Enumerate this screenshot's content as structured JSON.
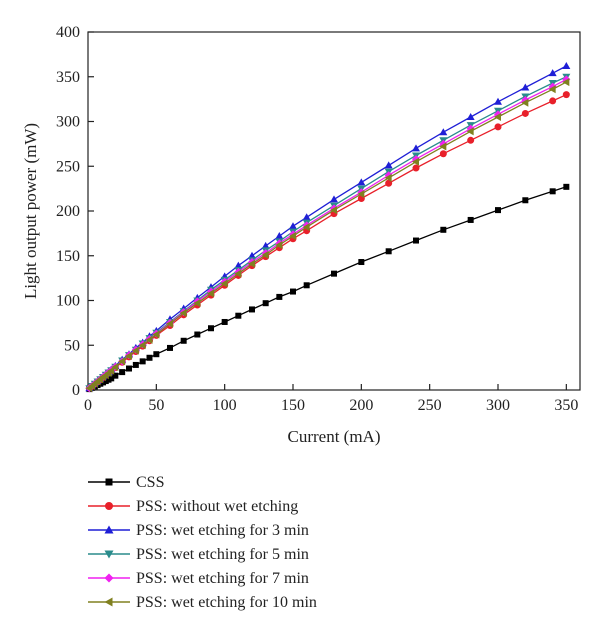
{
  "chart_data": {
    "type": "line",
    "xlabel": "Current (mA)",
    "ylabel": "Light output power (mW)",
    "xlim": [
      0,
      360
    ],
    "ylim": [
      0,
      400
    ],
    "xticks": [
      0,
      50,
      100,
      150,
      200,
      250,
      300,
      350
    ],
    "yticks": [
      0,
      50,
      100,
      150,
      200,
      250,
      300,
      350,
      400
    ],
    "grid": false,
    "legend_position": "bottom",
    "series": [
      {
        "name": "CSS",
        "color": "#000000",
        "marker": "square",
        "x": [
          1,
          3,
          5,
          7,
          9,
          11,
          13,
          15,
          17,
          20,
          25,
          30,
          35,
          40,
          45,
          50,
          60,
          70,
          80,
          90,
          100,
          110,
          120,
          130,
          140,
          150,
          160,
          180,
          200,
          220,
          240,
          260,
          280,
          300,
          320,
          340,
          350
        ],
        "y": [
          1,
          2.5,
          4,
          5.5,
          7,
          8.5,
          10,
          11.5,
          13,
          16,
          20,
          24,
          28,
          32,
          36,
          40,
          47,
          55,
          62,
          69,
          76,
          83,
          90,
          97,
          104,
          110,
          117,
          130,
          143,
          155,
          167,
          179,
          190,
          201,
          212,
          222,
          227
        ]
      },
      {
        "name": "PSS: without wet etching",
        "color": "#e8202a",
        "marker": "circle",
        "x": [
          1,
          3,
          5,
          7,
          9,
          11,
          13,
          15,
          17,
          20,
          25,
          30,
          35,
          40,
          45,
          50,
          60,
          70,
          80,
          90,
          100,
          110,
          120,
          130,
          140,
          150,
          160,
          180,
          200,
          220,
          240,
          260,
          280,
          300,
          320,
          340,
          350
        ],
        "y": [
          2,
          4,
          6.5,
          9,
          11.5,
          14,
          16.5,
          19,
          21.5,
          25,
          31,
          37,
          43,
          49,
          55,
          61,
          72,
          84,
          95,
          106,
          117,
          128,
          139,
          149,
          159,
          169,
          178,
          197,
          214,
          231,
          248,
          264,
          279,
          294,
          309,
          323,
          330
        ]
      },
      {
        "name": "PSS: wet etching for 3 min",
        "color": "#1f1fd6",
        "marker": "triangle-up",
        "x": [
          1,
          3,
          5,
          7,
          9,
          11,
          13,
          15,
          17,
          20,
          25,
          30,
          35,
          40,
          45,
          50,
          60,
          70,
          80,
          90,
          100,
          110,
          120,
          130,
          140,
          150,
          160,
          180,
          200,
          220,
          240,
          260,
          280,
          300,
          320,
          340,
          350
        ],
        "y": [
          2,
          5,
          7.5,
          10,
          12.5,
          15,
          18,
          20.5,
          23,
          27,
          34,
          40,
          47,
          53,
          60,
          66,
          79,
          91,
          103,
          115,
          127,
          139,
          150,
          161,
          172,
          183,
          193,
          213,
          232,
          251,
          270,
          288,
          305,
          322,
          338,
          354,
          362
        ]
      },
      {
        "name": "PSS: wet etching for 5 min",
        "color": "#2a8c8c",
        "marker": "triangle-down",
        "x": [
          1,
          3,
          5,
          7,
          9,
          11,
          13,
          15,
          17,
          20,
          25,
          30,
          35,
          40,
          45,
          50,
          60,
          70,
          80,
          90,
          100,
          110,
          120,
          130,
          140,
          150,
          160,
          180,
          200,
          220,
          240,
          260,
          280,
          300,
          320,
          340,
          350
        ],
        "y": [
          2,
          4.5,
          7,
          9.5,
          12,
          14.5,
          17,
          19.5,
          22,
          26,
          33,
          39,
          45,
          52,
          58,
          64,
          76,
          88,
          100,
          112,
          123,
          134,
          145,
          156,
          166,
          177,
          187,
          206,
          225,
          244,
          262,
          279,
          296,
          312,
          328,
          343,
          350
        ]
      },
      {
        "name": "PSS: wet etching for 7 min",
        "color": "#f021f0",
        "marker": "diamond",
        "x": [
          1,
          3,
          5,
          7,
          9,
          11,
          13,
          15,
          17,
          20,
          25,
          30,
          35,
          40,
          45,
          50,
          60,
          70,
          80,
          90,
          100,
          110,
          120,
          130,
          140,
          150,
          160,
          180,
          200,
          220,
          240,
          260,
          280,
          300,
          320,
          340,
          350
        ],
        "y": [
          2,
          4.5,
          7,
          9.5,
          12,
          14.5,
          17,
          19.5,
          22,
          26,
          32,
          39,
          45,
          51,
          57,
          63,
          75,
          87,
          99,
          110,
          121,
          132,
          143,
          153,
          164,
          174,
          184,
          203,
          221,
          240,
          258,
          275,
          292,
          308,
          324,
          339,
          347
        ]
      },
      {
        "name": "PSS: wet etching for 10 min",
        "color": "#808020",
        "marker": "triangle-left",
        "x": [
          1,
          3,
          5,
          7,
          9,
          11,
          13,
          15,
          17,
          20,
          25,
          30,
          35,
          40,
          45,
          50,
          60,
          70,
          80,
          90,
          100,
          110,
          120,
          130,
          140,
          150,
          160,
          180,
          200,
          220,
          240,
          260,
          280,
          300,
          320,
          340,
          350
        ],
        "y": [
          2,
          4.5,
          7,
          9.5,
          12,
          14.5,
          16.5,
          19,
          21.5,
          25.5,
          32,
          38,
          44,
          50,
          56,
          62,
          74,
          86,
          97,
          108,
          119,
          130,
          141,
          151,
          162,
          172,
          182,
          201,
          219,
          237,
          255,
          272,
          289,
          305,
          321,
          336,
          344
        ]
      }
    ]
  }
}
